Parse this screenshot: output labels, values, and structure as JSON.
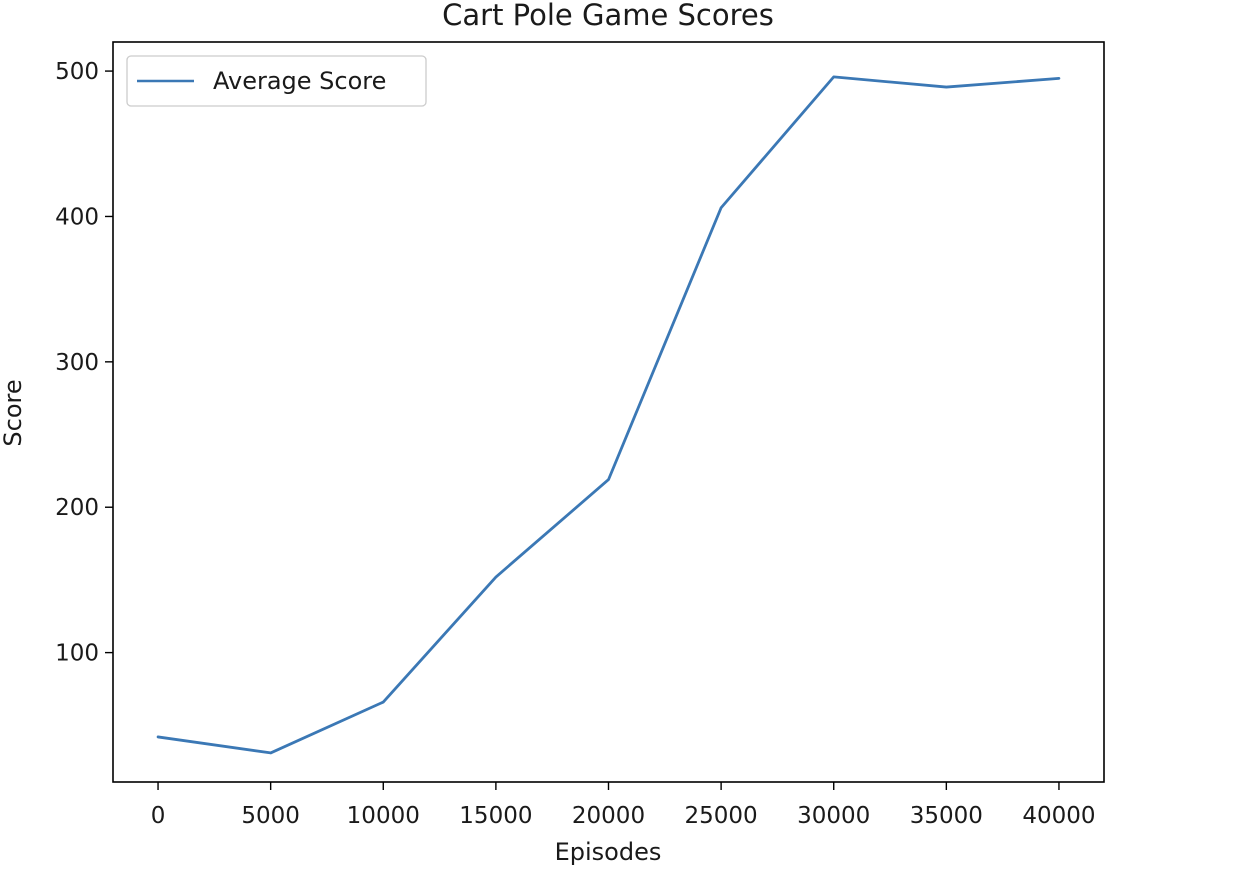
{
  "chart_data": {
    "type": "line",
    "title": "Cart Pole Game Scores",
    "xlabel": "Episodes",
    "ylabel": "Score",
    "xlim": [
      -2000,
      42000
    ],
    "ylim": [
      11,
      520
    ],
    "x_ticks": [
      0,
      5000,
      10000,
      15000,
      20000,
      25000,
      30000,
      35000,
      40000
    ],
    "y_ticks": [
      100,
      200,
      300,
      400,
      500
    ],
    "grid": false,
    "legend_position": "top-left",
    "series": [
      {
        "name": "Average Score",
        "color": "#3b78b5",
        "x": [
          0,
          5000,
          10000,
          15000,
          20000,
          25000,
          30000,
          35000,
          40000
        ],
        "y": [
          42,
          31,
          66,
          152,
          219,
          406,
          496,
          489,
          495
        ]
      }
    ]
  }
}
